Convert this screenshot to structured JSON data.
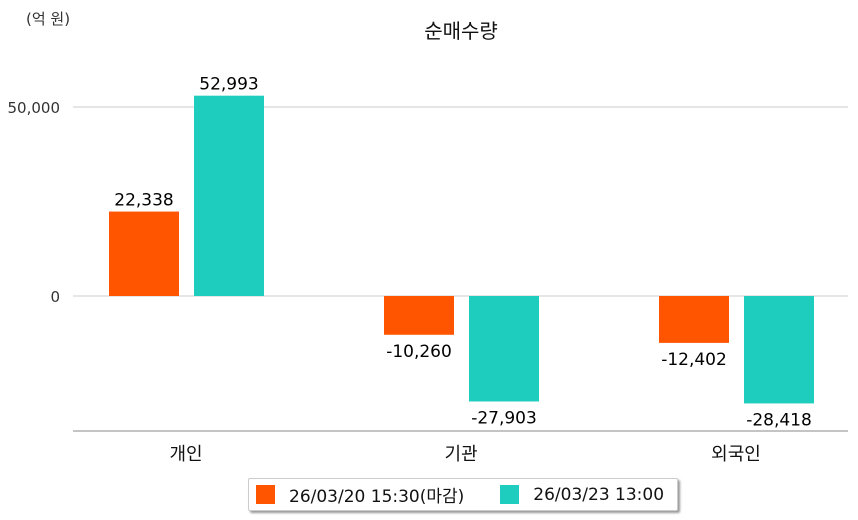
{
  "chart_data": {
    "type": "bar",
    "title": "순매수량",
    "unit_label": "(억 원)",
    "categories": [
      "개인",
      "기관",
      "외국인"
    ],
    "series": [
      {
        "name": "26/03/20 15:30(마감)",
        "color": "#ff5500",
        "values": [
          22338,
          -10260,
          -12402
        ],
        "labels": [
          "22,338",
          "-10,260",
          "-12,402"
        ]
      },
      {
        "name": "26/03/23 13:00",
        "color": "#1ecdbd",
        "values": [
          52993,
          -27903,
          -28418
        ],
        "labels": [
          "52,993",
          "-27,903",
          "-28,418"
        ]
      }
    ],
    "yticks": [
      0,
      50000
    ],
    "ytick_labels": [
      "0",
      "50,000"
    ],
    "ylim": [
      -35700,
      68000
    ],
    "grid": true,
    "legend": "bottom"
  }
}
